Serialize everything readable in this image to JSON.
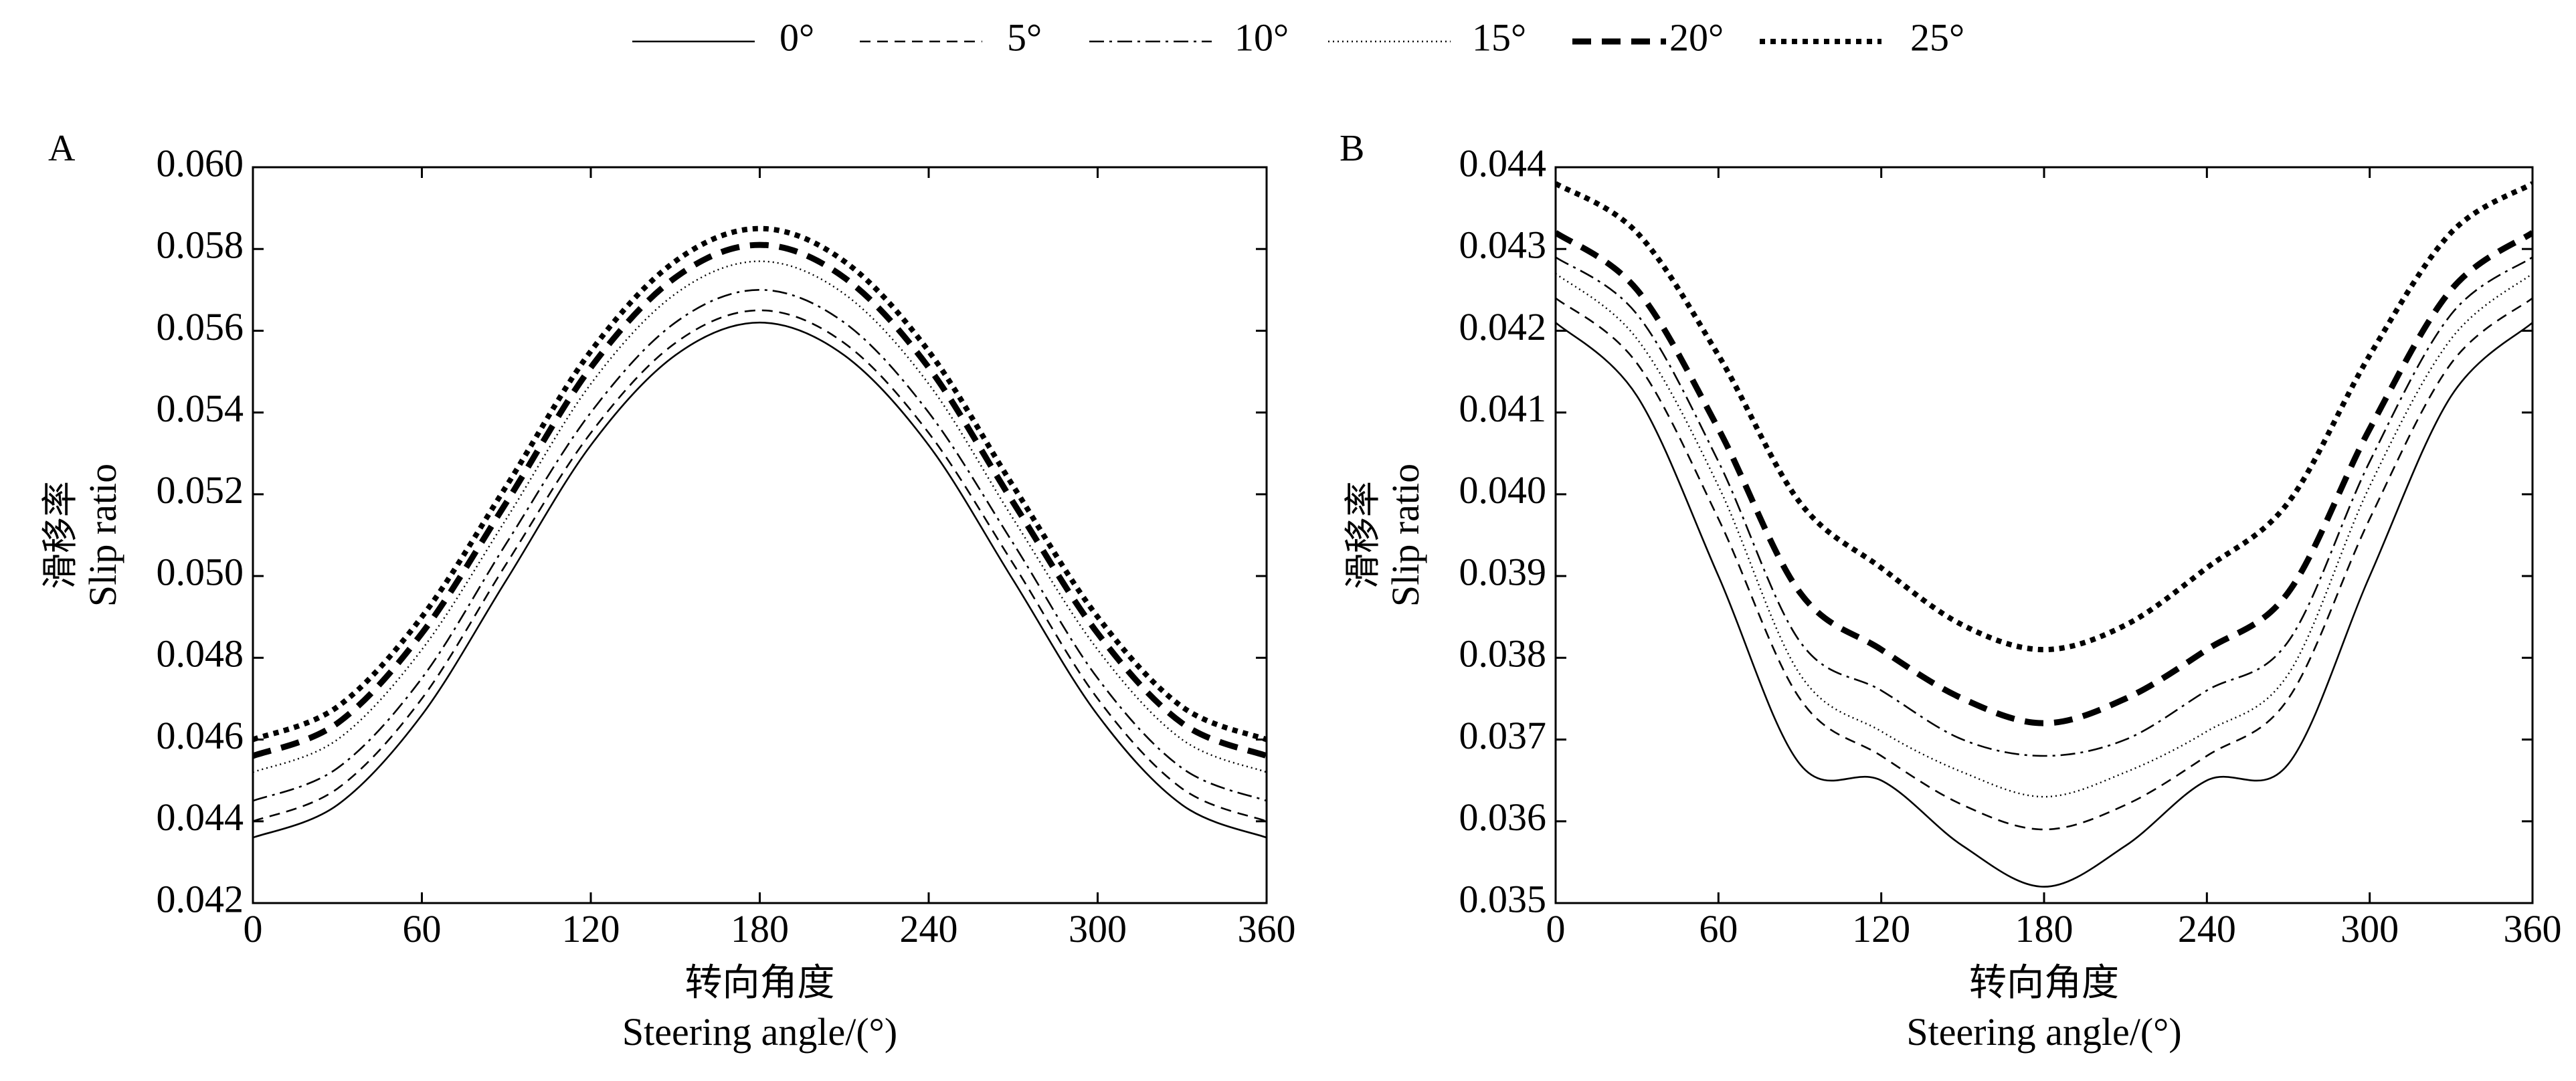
{
  "legend": [
    {
      "label": "0°"
    },
    {
      "label": "5°"
    },
    {
      "label": "10°"
    },
    {
      "label": "15°"
    },
    {
      "label": "20°"
    },
    {
      "label": "25°"
    }
  ],
  "chart_data": [
    {
      "type": "line",
      "panel_label": "A",
      "xlabel_cn": "转向角度",
      "xlabel_en": "Steering angle/(°)",
      "ylabel_cn": "滑移率",
      "ylabel_en": "Slip ratio",
      "xlim": [
        0,
        360
      ],
      "ylim": [
        0.042,
        0.06
      ],
      "xticks": [
        0,
        60,
        120,
        180,
        240,
        300,
        360
      ],
      "xtick_labels": [
        "0",
        "60",
        "120",
        "180",
        "240",
        "300",
        "360"
      ],
      "yticks": [
        0.042,
        0.044,
        0.046,
        0.048,
        0.05,
        0.052,
        0.054,
        0.056,
        0.058,
        0.06
      ],
      "ytick_labels": [
        "0.042",
        "0.044",
        "0.046",
        "0.048",
        "0.050",
        "0.052",
        "0.054",
        "0.056",
        "0.058",
        "0.060"
      ],
      "grid": false,
      "x": [
        0,
        30,
        60,
        90,
        120,
        150,
        180,
        210,
        240,
        270,
        300,
        330,
        360
      ],
      "series": [
        {
          "name": "0°",
          "values": [
            0.0436,
            0.0444,
            0.0466,
            0.0499,
            0.0532,
            0.0554,
            0.0562,
            0.0554,
            0.0532,
            0.0499,
            0.0466,
            0.0444,
            0.0436
          ]
        },
        {
          "name": "5°",
          "values": [
            0.044,
            0.0448,
            0.047,
            0.0503,
            0.0535,
            0.0557,
            0.0565,
            0.0557,
            0.0535,
            0.0503,
            0.047,
            0.0448,
            0.044
          ]
        },
        {
          "name": "10°",
          "values": [
            0.0445,
            0.0453,
            0.0475,
            0.0508,
            0.054,
            0.0562,
            0.057,
            0.0562,
            0.054,
            0.0508,
            0.0475,
            0.0453,
            0.0445
          ]
        },
        {
          "name": "15°",
          "values": [
            0.0452,
            0.046,
            0.0482,
            0.0514,
            0.0547,
            0.0569,
            0.0577,
            0.0569,
            0.0547,
            0.0514,
            0.0482,
            0.046,
            0.0452
          ]
        },
        {
          "name": "20°",
          "values": [
            0.0456,
            0.0464,
            0.0486,
            0.0518,
            0.0551,
            0.0573,
            0.0581,
            0.0573,
            0.0551,
            0.0518,
            0.0486,
            0.0464,
            0.0456
          ]
        },
        {
          "name": "25°",
          "values": [
            0.046,
            0.0468,
            0.049,
            0.0522,
            0.0555,
            0.0577,
            0.0585,
            0.0577,
            0.0555,
            0.0522,
            0.049,
            0.0468,
            0.046
          ]
        }
      ]
    },
    {
      "type": "line",
      "panel_label": "B",
      "xlabel_cn": "转向角度",
      "xlabel_en": "Steering angle/(°)",
      "ylabel_cn": "滑移率",
      "ylabel_en": "Slip ratio",
      "xlim": [
        0,
        360
      ],
      "ylim": [
        0.035,
        0.044
      ],
      "xticks": [
        0,
        60,
        120,
        180,
        240,
        300,
        360
      ],
      "xtick_labels": [
        "0",
        "60",
        "120",
        "180",
        "240",
        "300",
        "360"
      ],
      "yticks": [
        0.035,
        0.036,
        0.037,
        0.038,
        0.039,
        0.04,
        0.041,
        0.042,
        0.043,
        0.044
      ],
      "ytick_labels": [
        "0.035",
        "0.036",
        "0.037",
        "0.038",
        "0.039",
        "0.040",
        "0.041",
        "0.042",
        "0.043",
        "0.044"
      ],
      "grid": false,
      "x": [
        0,
        30,
        60,
        90,
        120,
        150,
        180,
        210,
        240,
        270,
        300,
        330,
        360
      ],
      "series": [
        {
          "name": "0°",
          "values": [
            0.0421,
            0.0412,
            0.039,
            0.0367,
            0.0365,
            0.0357,
            0.0352,
            0.0357,
            0.0365,
            0.0367,
            0.039,
            0.0412,
            0.0421
          ]
        },
        {
          "name": "5°",
          "values": [
            0.0424,
            0.0416,
            0.0397,
            0.0375,
            0.0368,
            0.0362,
            0.0359,
            0.0362,
            0.0368,
            0.0375,
            0.0397,
            0.0416,
            0.0424
          ]
        },
        {
          "name": "10°",
          "values": [
            0.0429,
            0.0422,
            0.0404,
            0.0382,
            0.0376,
            0.037,
            0.0368,
            0.037,
            0.0376,
            0.0382,
            0.0404,
            0.0422,
            0.0429
          ]
        },
        {
          "name": "15°",
          "values": [
            0.0427,
            0.0419,
            0.0401,
            0.0378,
            0.0371,
            0.0366,
            0.0363,
            0.0366,
            0.0371,
            0.0378,
            0.0401,
            0.0419,
            0.0427
          ]
        },
        {
          "name": "20°",
          "values": [
            0.0432,
            0.0425,
            0.0408,
            0.0388,
            0.0381,
            0.0375,
            0.0372,
            0.0375,
            0.0381,
            0.0388,
            0.0408,
            0.0425,
            0.0432
          ]
        },
        {
          "name": "25°",
          "values": [
            0.0438,
            0.0432,
            0.0417,
            0.0399,
            0.0391,
            0.0384,
            0.0381,
            0.0384,
            0.0391,
            0.0399,
            0.0417,
            0.0432,
            0.0438
          ]
        }
      ]
    }
  ]
}
